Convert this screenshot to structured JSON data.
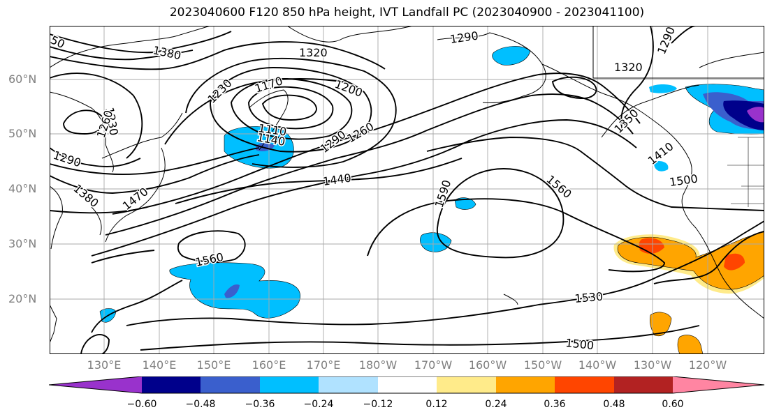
{
  "title": "2023040600 F120 850 hPa height, IVT Landfall PC (2023040900 - 2023041100)",
  "lat_labels": [
    "60°N",
    "50°N",
    "40°N",
    "30°N",
    "20°N"
  ],
  "lon_labels": [
    "130°E",
    "140°E",
    "150°E",
    "160°E",
    "170°E",
    "180°W",
    "170°W",
    "160°W",
    "150°W",
    "140°W",
    "130°W",
    "120°W"
  ],
  "contour_labels": [
    "50",
    "1380",
    "1320",
    "1290",
    "1290",
    "1230",
    "1170",
    "1200",
    "1320",
    "1350",
    "1230",
    "1260",
    "1110",
    "1140",
    "1260",
    "1290",
    "1410",
    "1290",
    "1380",
    "1470",
    "1440",
    "1590",
    "1560",
    "1500",
    "1560",
    "1530",
    "1500"
  ],
  "colorbar": {
    "ticks": [
      "−0.60",
      "−0.48",
      "−0.36",
      "−0.24",
      "−0.12",
      "0.12",
      "0.24",
      "0.36",
      "0.48",
      "0.60"
    ],
    "colors": [
      "#9932cc",
      "#00008b",
      "#3a5fcd",
      "#00bfff",
      "#b0e2ff",
      "#ffffff",
      "#ffeb8a",
      "#ffa500",
      "#ff4500",
      "#b22222",
      "#ff85a2"
    ]
  }
}
